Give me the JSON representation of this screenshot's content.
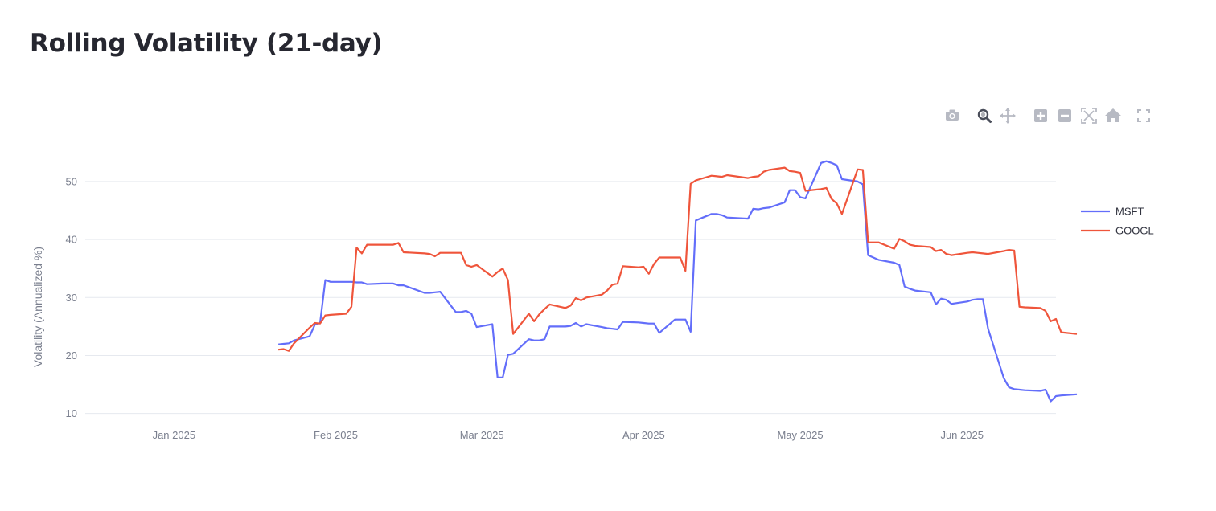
{
  "page": {
    "title": "Rolling Volatility (21-day)"
  },
  "modebar": [
    {
      "name": "camera-icon",
      "tooltip": "Download plot as a png"
    },
    {
      "name": "zoom-icon",
      "tooltip": "Zoom"
    },
    {
      "name": "pan-icon",
      "tooltip": "Pan"
    },
    {
      "name": "zoom-in-icon",
      "tooltip": "Zoom in"
    },
    {
      "name": "zoom-out-icon",
      "tooltip": "Zoom out"
    },
    {
      "name": "autoscale-icon",
      "tooltip": "Autoscale"
    },
    {
      "name": "reset-axes-icon",
      "tooltip": "Reset axes"
    },
    {
      "name": "fullscreen-icon",
      "tooltip": "Fullscreen"
    }
  ],
  "colors": {
    "MSFT": "#636efa",
    "GOOGL": "#ef553b",
    "grid": "#e6e9ef",
    "text": "#262730"
  },
  "chart_data": {
    "type": "line",
    "title": "Rolling Volatility (21-day)",
    "xlabel": "",
    "ylabel": "Volatility (Annualized %)",
    "x_range": [
      "2024-12-15",
      "2025-06-19"
    ],
    "ylim": [
      8.7,
      54.7
    ],
    "x_ticks": [
      {
        "date": "2025-01-01",
        "label": "Jan 2025"
      },
      {
        "date": "2025-02-01",
        "label": "Feb 2025"
      },
      {
        "date": "2025-03-01",
        "label": "Mar 2025"
      },
      {
        "date": "2025-04-01",
        "label": "Apr 2025"
      },
      {
        "date": "2025-05-01",
        "label": "May 2025"
      },
      {
        "date": "2025-06-01",
        "label": "Jun 2025"
      }
    ],
    "y_ticks": [
      10,
      20,
      30,
      40,
      50
    ],
    "grid": true,
    "legend": "right",
    "series": [
      {
        "name": "MSFT",
        "points": [
          [
            "2025-01-21",
            21.9
          ],
          [
            "2025-01-22",
            22.0
          ],
          [
            "2025-01-23",
            22.1
          ],
          [
            "2025-01-24",
            22.6
          ],
          [
            "2025-01-27",
            23.3
          ],
          [
            "2025-01-28",
            25.3
          ],
          [
            "2025-01-29",
            25.6
          ],
          [
            "2025-01-30",
            33.0
          ],
          [
            "2025-01-31",
            32.7
          ],
          [
            "2025-02-03",
            32.7
          ],
          [
            "2025-02-04",
            32.7
          ],
          [
            "2025-02-05",
            32.6
          ],
          [
            "2025-02-06",
            32.6
          ],
          [
            "2025-02-07",
            32.3
          ],
          [
            "2025-02-10",
            32.4
          ],
          [
            "2025-02-11",
            32.4
          ],
          [
            "2025-02-12",
            32.4
          ],
          [
            "2025-02-13",
            32.1
          ],
          [
            "2025-02-14",
            32.1
          ],
          [
            "2025-02-18",
            30.8
          ],
          [
            "2025-02-19",
            30.8
          ],
          [
            "2025-02-20",
            30.9
          ],
          [
            "2025-02-21",
            31.0
          ],
          [
            "2025-02-24",
            27.5
          ],
          [
            "2025-02-25",
            27.5
          ],
          [
            "2025-02-26",
            27.7
          ],
          [
            "2025-02-27",
            27.2
          ],
          [
            "2025-02-28",
            24.9
          ],
          [
            "2025-03-03",
            25.4
          ],
          [
            "2025-03-04",
            16.2
          ],
          [
            "2025-03-05",
            16.2
          ],
          [
            "2025-03-06",
            20.1
          ],
          [
            "2025-03-07",
            20.3
          ],
          [
            "2025-03-10",
            22.8
          ],
          [
            "2025-03-11",
            22.6
          ],
          [
            "2025-03-12",
            22.6
          ],
          [
            "2025-03-13",
            22.8
          ],
          [
            "2025-03-14",
            25.0
          ],
          [
            "2025-03-17",
            25.0
          ],
          [
            "2025-03-18",
            25.1
          ],
          [
            "2025-03-19",
            25.6
          ],
          [
            "2025-03-20",
            25.0
          ],
          [
            "2025-03-21",
            25.4
          ],
          [
            "2025-03-24",
            24.9
          ],
          [
            "2025-03-25",
            24.7
          ],
          [
            "2025-03-26",
            24.6
          ],
          [
            "2025-03-27",
            24.5
          ],
          [
            "2025-03-28",
            25.8
          ],
          [
            "2025-03-31",
            25.7
          ],
          [
            "2025-04-01",
            25.6
          ],
          [
            "2025-04-02",
            25.5
          ],
          [
            "2025-04-03",
            25.5
          ],
          [
            "2025-04-04",
            23.9
          ],
          [
            "2025-04-07",
            26.2
          ],
          [
            "2025-04-08",
            26.2
          ],
          [
            "2025-04-09",
            26.2
          ],
          [
            "2025-04-10",
            24.1
          ],
          [
            "2025-04-11",
            43.3
          ],
          [
            "2025-04-14",
            44.4
          ],
          [
            "2025-04-15",
            44.4
          ],
          [
            "2025-04-16",
            44.2
          ],
          [
            "2025-04-17",
            43.8
          ],
          [
            "2025-04-21",
            43.6
          ],
          [
            "2025-04-22",
            45.3
          ],
          [
            "2025-04-23",
            45.2
          ],
          [
            "2025-04-24",
            45.4
          ],
          [
            "2025-04-25",
            45.5
          ],
          [
            "2025-04-28",
            46.4
          ],
          [
            "2025-04-29",
            48.5
          ],
          [
            "2025-04-30",
            48.5
          ],
          [
            "2025-05-01",
            47.3
          ],
          [
            "2025-05-02",
            47.1
          ],
          [
            "2025-05-05",
            53.2
          ],
          [
            "2025-05-06",
            53.5
          ],
          [
            "2025-05-07",
            53.2
          ],
          [
            "2025-05-08",
            52.8
          ],
          [
            "2025-05-09",
            50.4
          ],
          [
            "2025-05-12",
            50.0
          ],
          [
            "2025-05-13",
            49.5
          ],
          [
            "2025-05-14",
            37.3
          ],
          [
            "2025-05-15",
            36.9
          ],
          [
            "2025-05-16",
            36.5
          ],
          [
            "2025-05-19",
            36.0
          ],
          [
            "2025-05-20",
            35.6
          ],
          [
            "2025-05-21",
            31.9
          ],
          [
            "2025-05-22",
            31.5
          ],
          [
            "2025-05-23",
            31.2
          ],
          [
            "2025-05-26",
            30.9
          ],
          [
            "2025-05-27",
            28.8
          ],
          [
            "2025-05-28",
            29.8
          ],
          [
            "2025-05-29",
            29.6
          ],
          [
            "2025-05-30",
            28.9
          ],
          [
            "2025-06-02",
            29.3
          ],
          [
            "2025-06-03",
            29.6
          ],
          [
            "2025-06-04",
            29.7
          ],
          [
            "2025-06-05",
            29.7
          ],
          [
            "2025-06-06",
            24.6
          ],
          [
            "2025-06-09",
            16.1
          ],
          [
            "2025-06-10",
            14.5
          ],
          [
            "2025-06-11",
            14.2
          ],
          [
            "2025-06-12",
            14.1
          ],
          [
            "2025-06-13",
            14.0
          ],
          [
            "2025-06-16",
            13.9
          ],
          [
            "2025-06-17",
            14.1
          ],
          [
            "2025-06-18",
            12.1
          ],
          [
            "2025-06-19",
            13.0
          ],
          [
            "2025-06-20",
            13.1
          ],
          [
            "2025-06-23",
            13.3
          ]
        ]
      },
      {
        "name": "GOOGL",
        "points": [
          [
            "2025-01-21",
            21.0
          ],
          [
            "2025-01-22",
            21.1
          ],
          [
            "2025-01-23",
            20.8
          ],
          [
            "2025-01-24",
            22.1
          ],
          [
            "2025-01-27",
            24.8
          ],
          [
            "2025-01-28",
            25.6
          ],
          [
            "2025-01-29",
            25.5
          ],
          [
            "2025-01-30",
            26.9
          ],
          [
            "2025-01-31",
            27.0
          ],
          [
            "2025-02-03",
            27.2
          ],
          [
            "2025-02-04",
            28.4
          ],
          [
            "2025-02-05",
            38.6
          ],
          [
            "2025-02-06",
            37.6
          ],
          [
            "2025-02-07",
            39.1
          ],
          [
            "2025-02-10",
            39.1
          ],
          [
            "2025-02-11",
            39.1
          ],
          [
            "2025-02-12",
            39.1
          ],
          [
            "2025-02-13",
            39.4
          ],
          [
            "2025-02-14",
            37.8
          ],
          [
            "2025-02-18",
            37.6
          ],
          [
            "2025-02-19",
            37.5
          ],
          [
            "2025-02-20",
            37.1
          ],
          [
            "2025-02-21",
            37.7
          ],
          [
            "2025-02-24",
            37.7
          ],
          [
            "2025-02-25",
            37.7
          ],
          [
            "2025-02-26",
            35.6
          ],
          [
            "2025-02-27",
            35.3
          ],
          [
            "2025-02-28",
            35.6
          ],
          [
            "2025-03-03",
            33.6
          ],
          [
            "2025-03-04",
            34.4
          ],
          [
            "2025-03-05",
            35.0
          ],
          [
            "2025-03-06",
            33.0
          ],
          [
            "2025-03-07",
            23.7
          ],
          [
            "2025-03-10",
            27.2
          ],
          [
            "2025-03-11",
            25.9
          ],
          [
            "2025-03-12",
            27.1
          ],
          [
            "2025-03-13",
            28.0
          ],
          [
            "2025-03-14",
            28.8
          ],
          [
            "2025-03-17",
            28.2
          ],
          [
            "2025-03-18",
            28.6
          ],
          [
            "2025-03-19",
            29.9
          ],
          [
            "2025-03-20",
            29.5
          ],
          [
            "2025-03-21",
            30.0
          ],
          [
            "2025-03-24",
            30.5
          ],
          [
            "2025-03-25",
            31.2
          ],
          [
            "2025-03-26",
            32.2
          ],
          [
            "2025-03-27",
            32.4
          ],
          [
            "2025-03-28",
            35.4
          ],
          [
            "2025-03-31",
            35.2
          ],
          [
            "2025-04-01",
            35.3
          ],
          [
            "2025-04-02",
            34.1
          ],
          [
            "2025-04-03",
            35.8
          ],
          [
            "2025-04-04",
            36.9
          ],
          [
            "2025-04-07",
            36.9
          ],
          [
            "2025-04-08",
            36.9
          ],
          [
            "2025-04-09",
            34.6
          ],
          [
            "2025-04-10",
            49.6
          ],
          [
            "2025-04-11",
            50.2
          ],
          [
            "2025-04-14",
            51.0
          ],
          [
            "2025-04-15",
            50.9
          ],
          [
            "2025-04-16",
            50.8
          ],
          [
            "2025-04-17",
            51.1
          ],
          [
            "2025-04-21",
            50.6
          ],
          [
            "2025-04-22",
            50.8
          ],
          [
            "2025-04-23",
            50.9
          ],
          [
            "2025-04-24",
            51.7
          ],
          [
            "2025-04-25",
            52.0
          ],
          [
            "2025-04-28",
            52.4
          ],
          [
            "2025-04-29",
            51.8
          ],
          [
            "2025-04-30",
            51.7
          ],
          [
            "2025-05-01",
            51.5
          ],
          [
            "2025-05-02",
            48.4
          ],
          [
            "2025-05-05",
            48.7
          ],
          [
            "2025-05-06",
            48.9
          ],
          [
            "2025-05-07",
            47.0
          ],
          [
            "2025-05-08",
            46.2
          ],
          [
            "2025-05-09",
            44.4
          ],
          [
            "2025-05-12",
            52.1
          ],
          [
            "2025-05-13",
            52.0
          ],
          [
            "2025-05-14",
            39.5
          ],
          [
            "2025-05-15",
            39.5
          ],
          [
            "2025-05-16",
            39.5
          ],
          [
            "2025-05-19",
            38.4
          ],
          [
            "2025-05-20",
            40.1
          ],
          [
            "2025-05-21",
            39.7
          ],
          [
            "2025-05-22",
            39.1
          ],
          [
            "2025-05-23",
            38.9
          ],
          [
            "2025-05-26",
            38.7
          ],
          [
            "2025-05-27",
            38.0
          ],
          [
            "2025-05-28",
            38.2
          ],
          [
            "2025-05-29",
            37.5
          ],
          [
            "2025-05-30",
            37.3
          ],
          [
            "2025-06-02",
            37.7
          ],
          [
            "2025-06-03",
            37.8
          ],
          [
            "2025-06-04",
            37.7
          ],
          [
            "2025-06-05",
            37.6
          ],
          [
            "2025-06-06",
            37.5
          ],
          [
            "2025-06-09",
            38.0
          ],
          [
            "2025-06-10",
            38.2
          ],
          [
            "2025-06-11",
            38.1
          ],
          [
            "2025-06-12",
            28.4
          ],
          [
            "2025-06-13",
            28.3
          ],
          [
            "2025-06-16",
            28.2
          ],
          [
            "2025-06-17",
            27.7
          ],
          [
            "2025-06-18",
            25.9
          ],
          [
            "2025-06-19",
            26.3
          ],
          [
            "2025-06-20",
            24.0
          ],
          [
            "2025-06-23",
            23.7
          ]
        ]
      }
    ]
  }
}
